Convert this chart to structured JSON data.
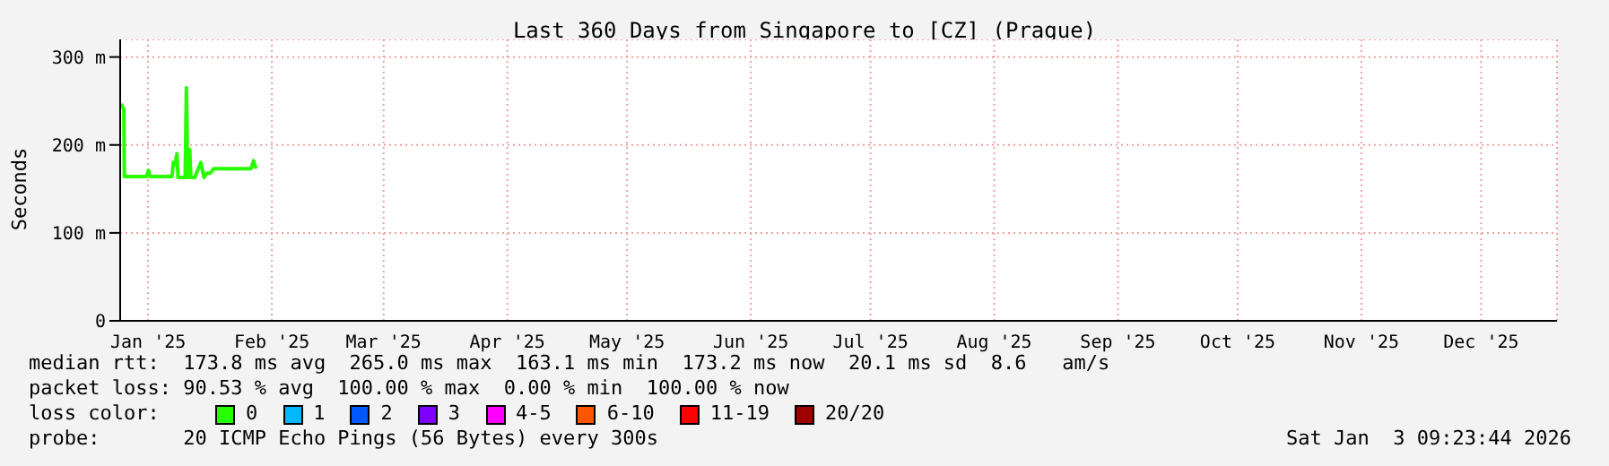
{
  "chart_data": {
    "type": "line",
    "title": "Last 360 Days from Singapore to [CZ] (Prague)",
    "ylabel": "Seconds",
    "x": [
      "2025-01-08T07:00",
      "2025-01-08T22:00",
      "2025-01-09T01:00",
      "2025-01-14T14:00",
      "2025-01-15T02:00",
      "2025-01-15T12:00",
      "2025-01-21T00:00",
      "2025-01-21T07:00",
      "2025-01-21T19:00",
      "2025-01-22T05:00",
      "2025-01-22T12:00",
      "2025-01-24T07:00",
      "2025-01-24T14:00",
      "2025-01-24T22:00",
      "2025-01-25T10:00",
      "2025-01-25T17:00",
      "2025-01-26T17:00",
      "2025-01-27T07:00",
      "2025-01-28T05:00",
      "2025-01-29T00:00",
      "2025-01-29T17:00",
      "2025-01-30T14:00",
      "2025-01-31T10:00",
      "2025-02-09T19:00",
      "2025-02-10T10:00",
      "2025-02-11T00:00"
    ],
    "series": [
      {
        "name": "0",
        "color": "#26ff00",
        "values": [
          247,
          240,
          164,
          164,
          171,
          164,
          164,
          180,
          178,
          190,
          163,
          163,
          265,
          163,
          195,
          163,
          163,
          170,
          180,
          163,
          168,
          168,
          173,
          173,
          182,
          173
        ]
      },
      {
        "name": "1",
        "color": "#00b8ff",
        "values": [
          null,
          null,
          null,
          null,
          null,
          null,
          null,
          null,
          null,
          null,
          null,
          null,
          null,
          null,
          null,
          null,
          null,
          null,
          null,
          null,
          null,
          null,
          null,
          null,
          null,
          null
        ]
      },
      {
        "name": "2",
        "color": "#0059ff",
        "values": [
          null,
          null,
          null,
          null,
          null,
          null,
          null,
          null,
          null,
          null,
          null,
          null,
          null,
          null,
          null,
          null,
          null,
          null,
          null,
          null,
          null,
          null,
          null,
          null,
          null,
          null
        ]
      },
      {
        "name": "3",
        "color": "#7e00ff",
        "values": [
          null,
          null,
          null,
          null,
          null,
          null,
          null,
          null,
          null,
          null,
          null,
          null,
          null,
          null,
          null,
          null,
          null,
          null,
          null,
          null,
          null,
          null,
          null,
          null,
          null,
          null
        ]
      },
      {
        "name": "4-5",
        "color": "#ff00ff",
        "values": [
          null,
          null,
          null,
          null,
          null,
          null,
          null,
          null,
          null,
          null,
          null,
          null,
          null,
          null,
          null,
          null,
          null,
          null,
          null,
          null,
          null,
          null,
          null,
          null,
          null,
          null
        ]
      },
      {
        "name": "6-10",
        "color": "#ff5500",
        "values": [
          null,
          null,
          null,
          null,
          null,
          null,
          null,
          null,
          null,
          null,
          null,
          null,
          null,
          null,
          null,
          null,
          null,
          null,
          null,
          null,
          null,
          null,
          null,
          null,
          null,
          null
        ]
      },
      {
        "name": "11-19",
        "color": "#ff0000",
        "values": [
          null,
          null,
          null,
          null,
          null,
          null,
          null,
          null,
          null,
          null,
          null,
          null,
          null,
          null,
          null,
          null,
          null,
          null,
          null,
          null,
          null,
          null,
          null,
          null,
          null,
          null
        ]
      },
      {
        "name": "20/20",
        "color": "#a10000",
        "values": [
          null,
          null,
          null,
          null,
          null,
          null,
          null,
          null,
          null,
          null,
          null,
          null,
          null,
          null,
          null,
          null,
          null,
          null,
          null,
          null,
          null,
          null,
          null,
          null,
          null,
          null
        ]
      }
    ],
    "legend": "bottom",
    "legend_title": "loss color:",
    "xlim": [
      "2025-01-08",
      "2026-01-03"
    ],
    "xticks": [
      {
        "value": "2025-01-15",
        "label": "Jan '25"
      },
      {
        "value": "2025-02-15",
        "label": "Feb '25"
      },
      {
        "value": "2025-03-15",
        "label": "Mar '25"
      },
      {
        "value": "2025-04-15",
        "label": "Apr '25"
      },
      {
        "value": "2025-05-15",
        "label": "May '25"
      },
      {
        "value": "2025-06-15",
        "label": "Jun '25"
      },
      {
        "value": "2025-07-15",
        "label": "Jul '25"
      },
      {
        "value": "2025-08-15",
        "label": "Aug '25"
      },
      {
        "value": "2025-09-15",
        "label": "Sep '25"
      },
      {
        "value": "2025-10-15",
        "label": "Oct '25"
      },
      {
        "value": "2025-11-15",
        "label": "Nov '25"
      },
      {
        "value": "2025-12-15",
        "label": "Dec '25"
      }
    ],
    "ylim": [
      0,
      320
    ],
    "yticks": [
      {
        "value": 0,
        "label": "0"
      },
      {
        "value": 100,
        "label": "100 m"
      },
      {
        "value": 200,
        "label": "200 m"
      },
      {
        "value": 300,
        "label": "300 m"
      }
    ],
    "grid": true,
    "marker": "none",
    "annotations": [
      "median rtt:  173.8 ms avg  265.0 ms max  163.1 ms min  173.2 ms now  20.1 ms sd  8.6   am/s",
      "packet loss: 90.53 % avg  100.00 % max  0.00 % min  100.00 % now",
      "probe:       20 ICMP Echo Pings (56 Bytes) every 300s",
      "Sat Jan  3 09:23:44 2026"
    ]
  }
}
